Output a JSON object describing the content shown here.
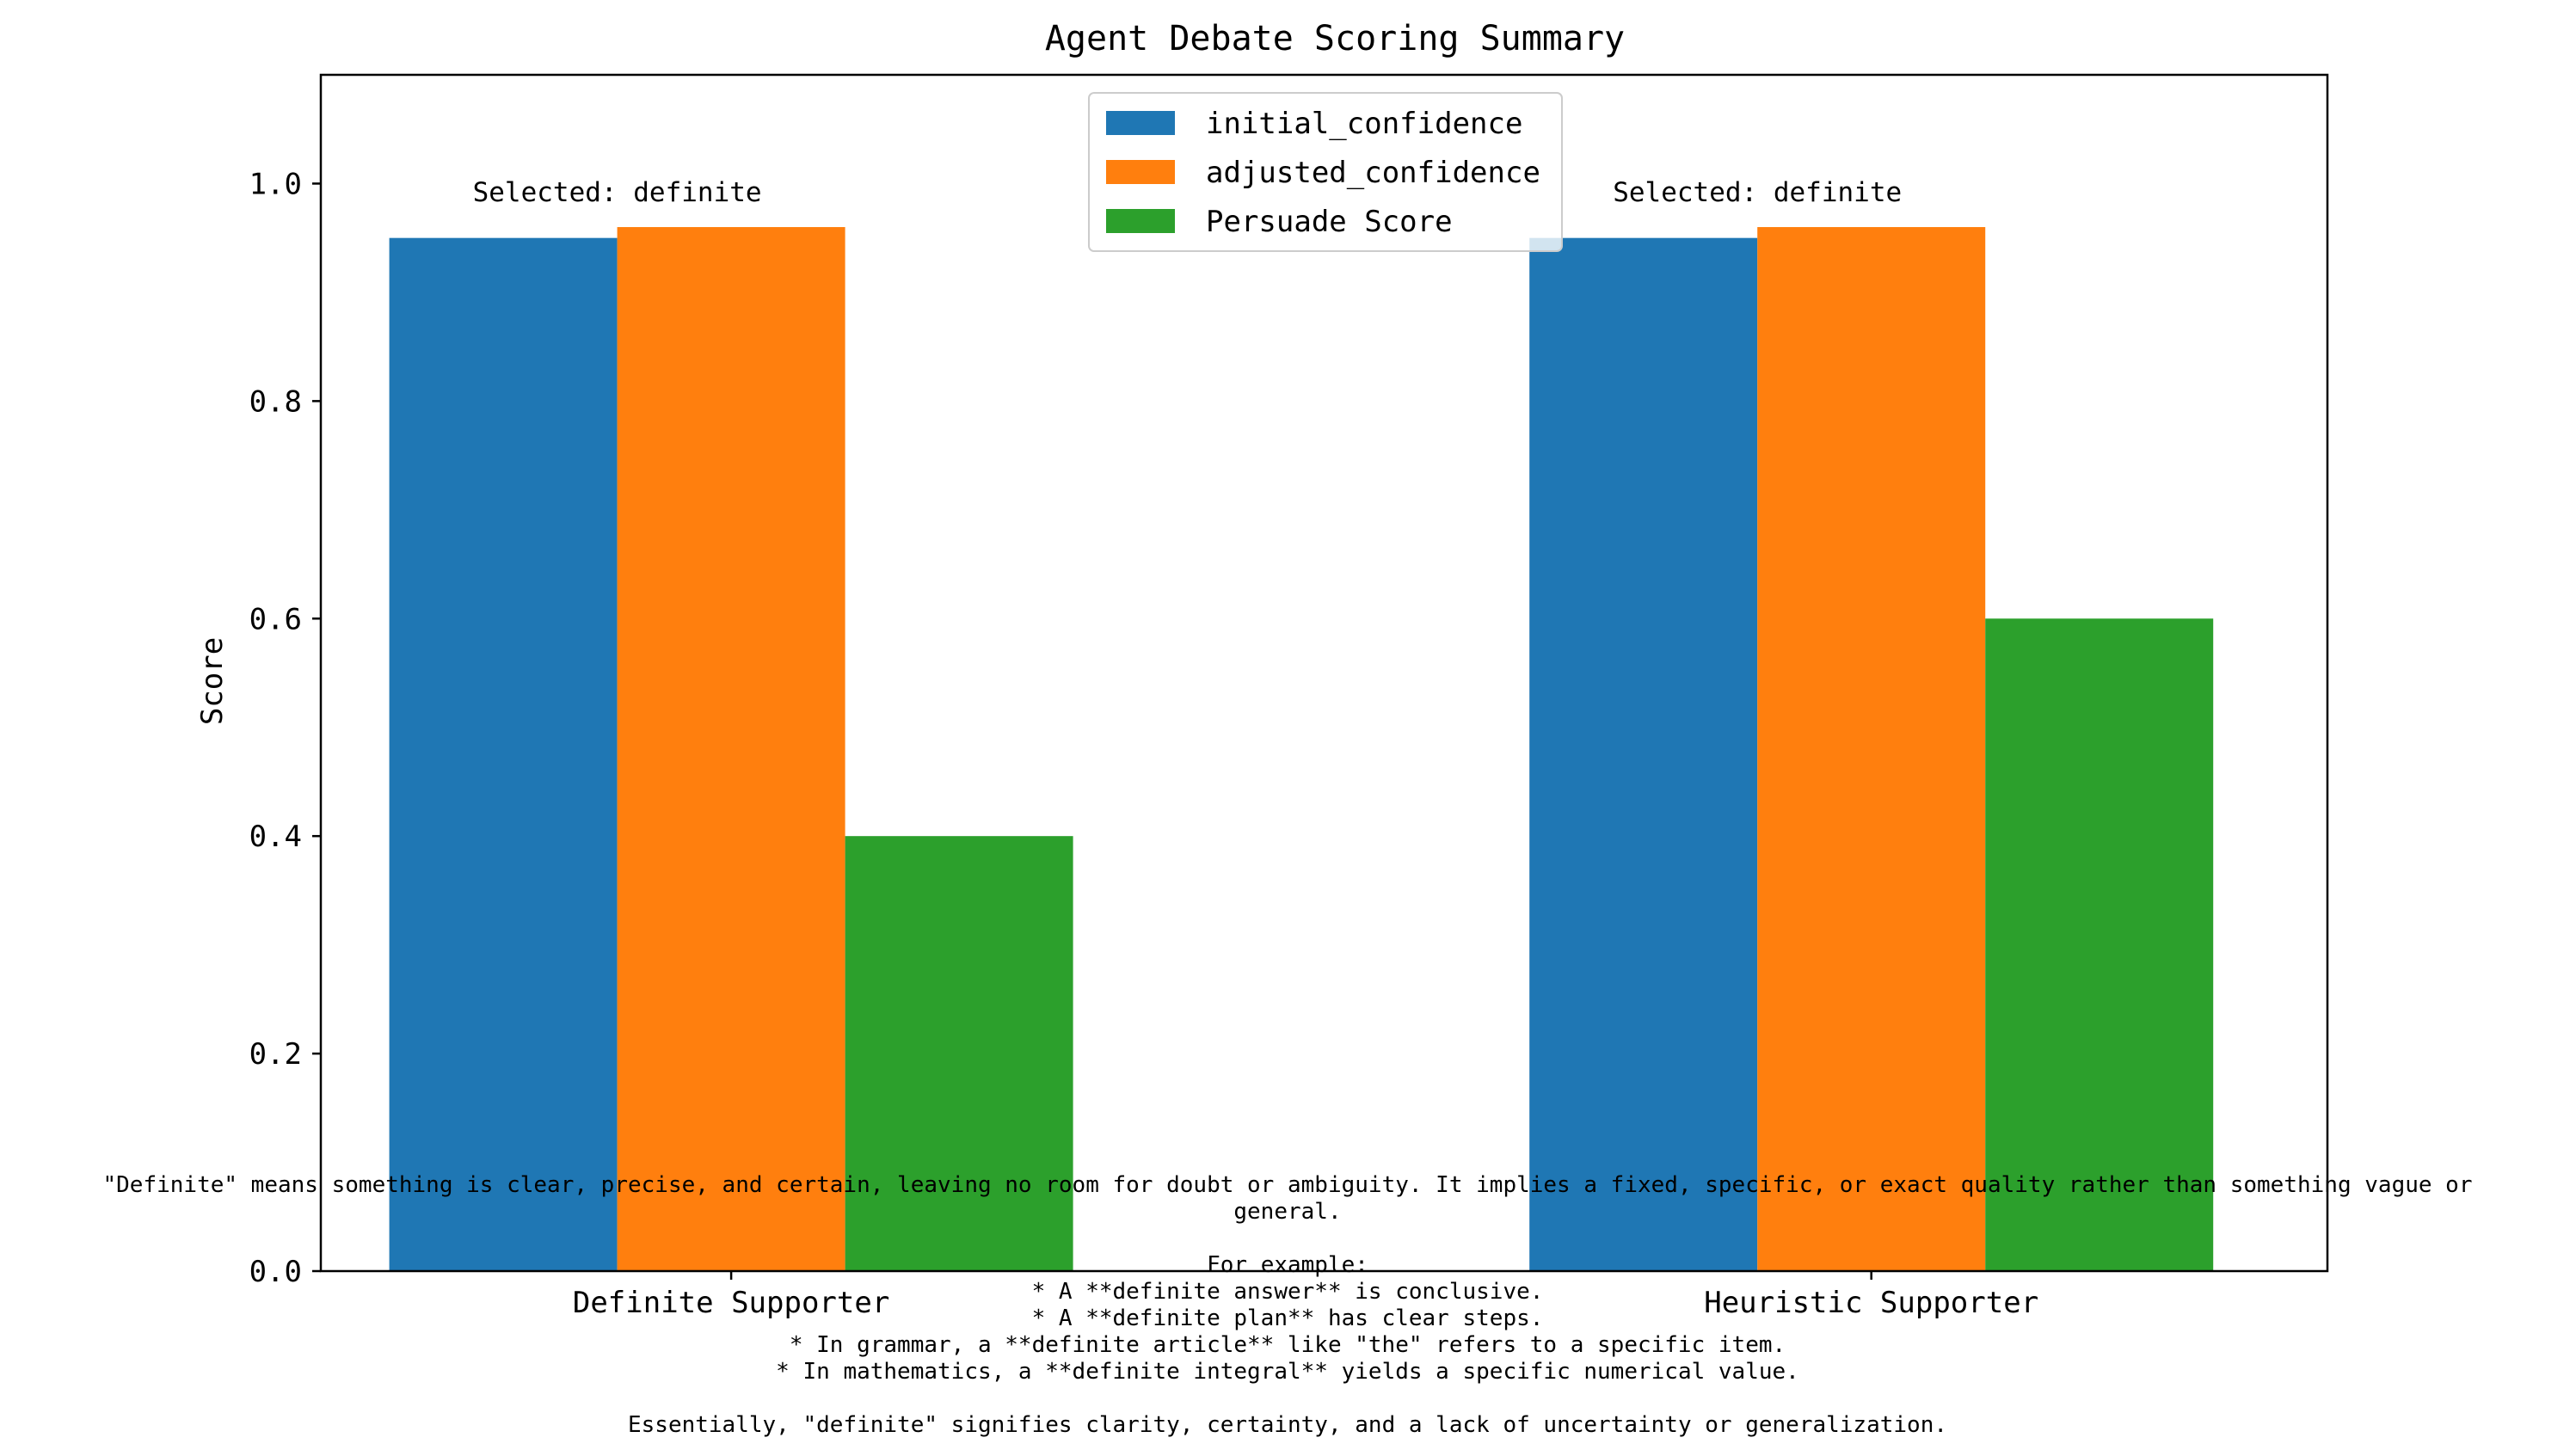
{
  "chart_data": {
    "type": "bar",
    "title": "Agent Debate Scoring Summary",
    "xlabel": "",
    "ylabel": "Score",
    "ylim": [
      0,
      1.1
    ],
    "yticks": [
      "0.0",
      "0.2",
      "0.4",
      "0.6",
      "0.8",
      "1.0"
    ],
    "categories": [
      "Definite Supporter",
      "Heuristic Supporter"
    ],
    "series": [
      {
        "name": "initial_confidence",
        "color": "#1f77b4",
        "values": [
          0.95,
          0.95
        ]
      },
      {
        "name": "adjusted_confidence",
        "color": "#ff7f0e",
        "values": [
          0.96,
          0.96
        ]
      },
      {
        "name": "Persuade Score",
        "color": "#2ca02c",
        "values": [
          0.4,
          0.6
        ]
      }
    ],
    "bar_annotations": [
      "Selected: definite",
      "Selected: definite"
    ],
    "legend_position": "upper center",
    "grid": false
  },
  "note": {
    "lines": [
      "\"Definite\" means something is clear, precise, and certain, leaving no room for doubt or ambiguity. It implies a fixed, specific, or exact quality rather than something vague or",
      "general.",
      "",
      "For example:",
      "*   A **definite answer** is conclusive.",
      "*   A **definite plan** has clear steps.",
      "*   In grammar, a **definite article** like \"the\" refers to a specific item.",
      "*   In mathematics, a **definite integral** yields a specific numerical value.",
      "",
      "Essentially, \"definite\" signifies clarity, certainty, and a lack of uncertainty or generalization."
    ]
  }
}
